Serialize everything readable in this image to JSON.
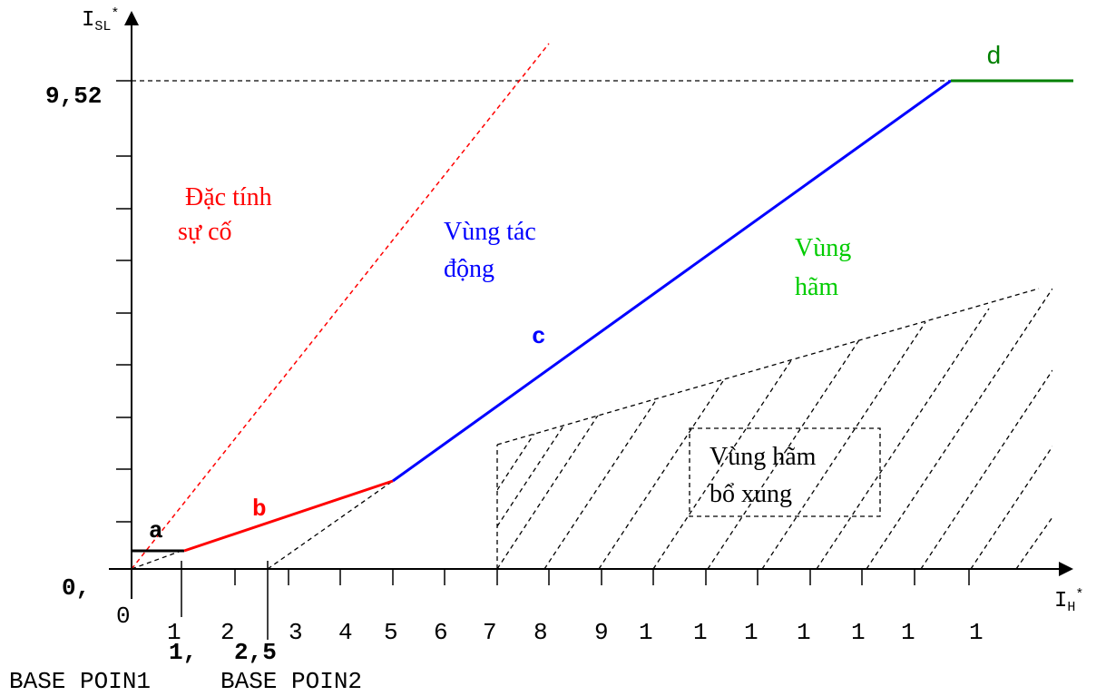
{
  "y_axis": {
    "name": "I",
    "subscript": "SL",
    "superscript": "*"
  },
  "x_axis": {
    "name": "I",
    "subscript": "H",
    "superscript": "*"
  },
  "y_labels": {
    "top": "9,52",
    "bottom": "0,"
  },
  "x_tick_labels": [
    "0",
    "1",
    "2",
    "3",
    "4",
    "5",
    "6",
    "7",
    "8",
    "9",
    "1",
    "1",
    "1",
    "1",
    "1",
    "1",
    "1"
  ],
  "breakpoint_labels": {
    "first": "1,",
    "second": "2,5"
  },
  "base_points": {
    "first": "BASE POIN1",
    "second": "BASE POIN2"
  },
  "segments": {
    "a": "a",
    "b": "b",
    "c": "c",
    "d": "d"
  },
  "regions": {
    "fault_line": [
      "Đặc tính",
      "sự cố"
    ],
    "operate": [
      "Vùng tác",
      "động"
    ],
    "restrain": [
      "Vùng",
      "hãm"
    ],
    "supplementary": [
      "Vùng hãm",
      "bổ xung"
    ]
  },
  "colors": {
    "axis": "#000000",
    "segment_a": "#000000",
    "segment_b": "#ff0000",
    "segment_c": "#0000ff",
    "segment_d": "#008000",
    "fault_line": "#ff0000",
    "operate_text": "#0000ff",
    "restrain_text": "#00cc00"
  }
}
